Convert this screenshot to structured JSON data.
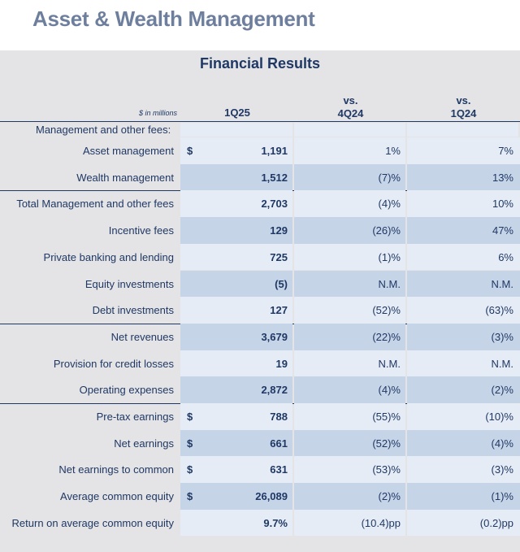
{
  "title": "Asset & Wealth Management",
  "table": {
    "title": "Financial Results",
    "units": "$ in millions",
    "col1_header": "1Q25",
    "col2_header_line1": "vs.",
    "col2_header_line2": "4Q24",
    "col3_header_line1": "vs.",
    "col3_header_line2": "1Q24",
    "section_label": "Management and other fees:",
    "rows": [
      {
        "label": "Asset management",
        "dollar": "$",
        "value": "1,191",
        "vs_prev": "1%",
        "vs_year": "7%"
      },
      {
        "label": "Wealth management",
        "dollar": "",
        "value": "1,512",
        "vs_prev": "(7)%",
        "vs_year": "13%"
      },
      {
        "label": "Total Management and other fees",
        "dollar": "",
        "value": "2,703",
        "vs_prev": "(4)%",
        "vs_year": "10%"
      },
      {
        "label": "Incentive fees",
        "dollar": "",
        "value": "129",
        "vs_prev": "(26)%",
        "vs_year": "47%"
      },
      {
        "label": "Private banking and lending",
        "dollar": "",
        "value": "725",
        "vs_prev": "(1)%",
        "vs_year": "6%"
      },
      {
        "label": "Equity investments",
        "dollar": "",
        "value": "(5)",
        "vs_prev": "N.M.",
        "vs_year": "N.M."
      },
      {
        "label": "Debt investments",
        "dollar": "",
        "value": "127",
        "vs_prev": "(52)%",
        "vs_year": "(63)%"
      },
      {
        "label": "Net revenues",
        "dollar": "",
        "value": "3,679",
        "vs_prev": "(22)%",
        "vs_year": "(3)%"
      },
      {
        "label": "Provision for credit losses",
        "dollar": "",
        "value": "19",
        "vs_prev": "N.M.",
        "vs_year": "N.M."
      },
      {
        "label": "Operating expenses",
        "dollar": "",
        "value": "2,872",
        "vs_prev": "(4)%",
        "vs_year": "(2)%"
      },
      {
        "label": "Pre-tax earnings",
        "dollar": "$",
        "value": "788",
        "vs_prev": "(55)%",
        "vs_year": "(10)%"
      },
      {
        "label": "Net earnings",
        "dollar": "$",
        "value": "661",
        "vs_prev": "(52)%",
        "vs_year": "(4)%"
      },
      {
        "label": "Net earnings to common",
        "dollar": "$",
        "value": "631",
        "vs_prev": "(53)%",
        "vs_year": "(3)%"
      },
      {
        "label": "Average common equity",
        "dollar": "$",
        "value": "26,089",
        "vs_prev": "(2)%",
        "vs_year": "(1)%"
      },
      {
        "label": "Return on average common equity",
        "dollar": "",
        "value": "9.7%",
        "vs_prev": "(10.4)pp",
        "vs_year": "(0.2)pp"
      }
    ],
    "colors": {
      "light": "#e6ecf5",
      "dark": "#c6d4e8",
      "rule": "#1f3864"
    }
  }
}
